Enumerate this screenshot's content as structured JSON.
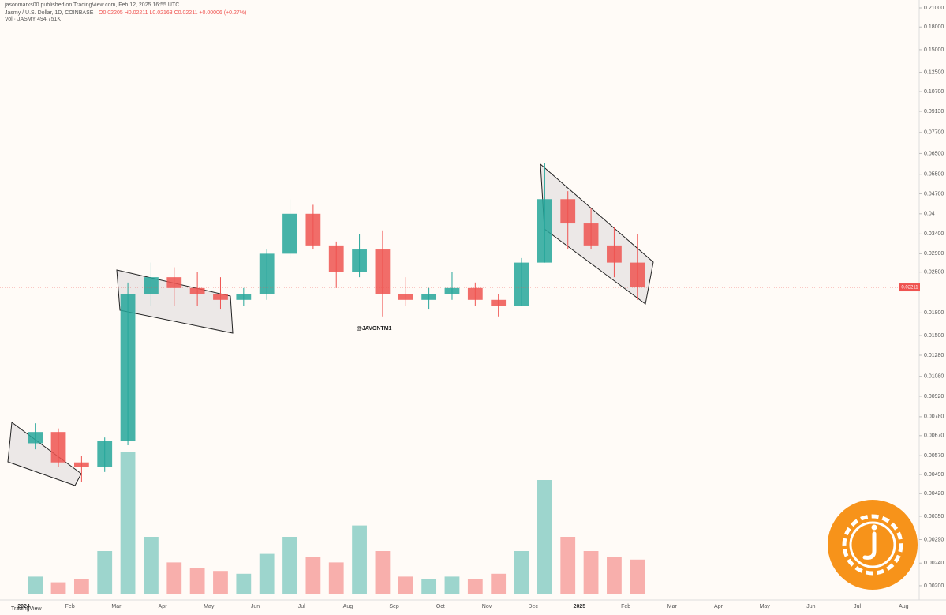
{
  "header": {
    "publisher": "jasonmarks00 published on TradingView.com, Feb 12, 2025 16:55 UTC",
    "symbol": "Jasmy / U.S. Dollar, 1D, COINBASE",
    "ohlc": "O0.02205 H0.02211 L0.02163 C0.02211 +0.00006 (+0.27%)",
    "volume": "Vol · JASMY 494.751K",
    "watermark": "@JAVONTM1",
    "footer": "TradingView"
  },
  "chart_data": {
    "type": "candlestick",
    "log_scale": true,
    "grid": false,
    "up_color": "#26a69a",
    "down_color": "#ef5350",
    "categories": [
      "2024",
      null,
      "Feb",
      null,
      "Mar",
      null,
      "Apr",
      null,
      "May",
      null,
      "Jun",
      null,
      "Jul",
      null,
      "Aug",
      null,
      "Sep",
      null,
      "Oct",
      null,
      "Nov",
      null,
      "Dec",
      null,
      "2025",
      null,
      "Feb",
      null,
      "Mar",
      null,
      "Apr",
      null,
      "May",
      null,
      "Jun",
      null,
      "Jul",
      null,
      "Aug",
      null
    ],
    "open": [
      0.0063,
      0.0069,
      0.0054,
      0.0052,
      0.0064,
      0.021,
      0.024,
      0.022,
      0.021,
      0.02,
      0.021,
      0.029,
      0.04,
      0.031,
      0.025,
      0.03,
      0.021,
      0.02,
      0.021,
      0.022,
      0.02,
      0.019,
      0.027,
      0.045,
      0.037,
      0.031,
      0.027,
      null,
      null,
      null,
      null,
      null,
      null,
      null,
      null,
      null,
      null,
      null,
      null,
      null
    ],
    "high": [
      0.0074,
      0.0071,
      0.0057,
      0.0066,
      0.023,
      0.027,
      0.026,
      0.025,
      0.024,
      0.022,
      0.03,
      0.045,
      0.043,
      0.032,
      0.034,
      0.035,
      0.024,
      0.022,
      0.025,
      0.023,
      0.021,
      0.028,
      0.06,
      0.048,
      0.042,
      0.036,
      0.034,
      null,
      null,
      null,
      null,
      null,
      null,
      null,
      null,
      null,
      null,
      null,
      null,
      null
    ],
    "low": [
      0.006,
      0.0052,
      0.0046,
      0.005,
      0.0062,
      0.019,
      0.019,
      0.019,
      0.0185,
      0.019,
      0.02,
      0.028,
      0.03,
      0.022,
      0.024,
      0.0175,
      0.019,
      0.0185,
      0.02,
      0.019,
      0.0175,
      0.019,
      0.027,
      0.03,
      0.03,
      0.024,
      0.02,
      null,
      null,
      null,
      null,
      null,
      null,
      null,
      null,
      null,
      null,
      null,
      null,
      null
    ],
    "close": [
      0.0069,
      0.0054,
      0.0052,
      0.0064,
      0.021,
      0.024,
      0.022,
      0.021,
      0.02,
      0.021,
      0.029,
      0.04,
      0.031,
      0.025,
      0.03,
      0.021,
      0.02,
      0.021,
      0.022,
      0.02,
      0.019,
      0.027,
      0.045,
      0.037,
      0.031,
      0.027,
      0.02211,
      null,
      null,
      null,
      null,
      null,
      null,
      null,
      null,
      null,
      null,
      null,
      null,
      null
    ],
    "volume": [
      12,
      8,
      10,
      30,
      100,
      40,
      22,
      18,
      16,
      14,
      28,
      40,
      26,
      22,
      48,
      30,
      12,
      10,
      12,
      10,
      14,
      30,
      80,
      40,
      30,
      26,
      24,
      null,
      null,
      null,
      null,
      null,
      null,
      null,
      null,
      null,
      null,
      null,
      null,
      null
    ],
    "last_price": 0.02211,
    "ylim": [
      0.0019,
      0.21
    ],
    "yticks": [
      {
        "value": 0.21,
        "label": "0.21000"
      },
      {
        "value": 0.18,
        "label": "0.18000"
      },
      {
        "value": 0.15,
        "label": "0.15000"
      },
      {
        "value": 0.125,
        "label": "0.12500"
      },
      {
        "value": 0.107,
        "label": "0.10700"
      },
      {
        "value": 0.0913,
        "label": "0.09130"
      },
      {
        "value": 0.077,
        "label": "0.07700"
      },
      {
        "value": 0.065,
        "label": "0.06500"
      },
      {
        "value": 0.055,
        "label": "0.05500"
      },
      {
        "value": 0.047,
        "label": "0.04700"
      },
      0.04,
      {
        "value": 0.034,
        "label": "0.03400"
      },
      {
        "value": 0.029,
        "label": "0.02900"
      },
      {
        "value": 0.025,
        "label": "0.02500"
      },
      {
        "value": 0.018,
        "label": "0.01800"
      },
      {
        "value": 0.015,
        "label": "0.01500"
      },
      {
        "value": 0.0128,
        "label": "0.01280"
      },
      {
        "value": 0.0108,
        "label": "0.01080"
      },
      {
        "value": 0.0092,
        "label": "0.00920"
      },
      {
        "value": 0.0078,
        "label": "0.00780"
      },
      {
        "value": 0.0067,
        "label": "0.00670"
      },
      {
        "value": 0.0057,
        "label": "0.00570"
      },
      {
        "value": 0.0049,
        "label": "0.00490"
      },
      {
        "value": 0.0042,
        "label": "0.00420"
      },
      {
        "value": 0.0035,
        "label": "0.00350"
      },
      {
        "value": 0.0029,
        "label": "0.00290"
      },
      {
        "value": 0.0024,
        "label": "0.00240"
      },
      {
        "value": 0.002,
        "label": "0.00200"
      }
    ]
  }
}
